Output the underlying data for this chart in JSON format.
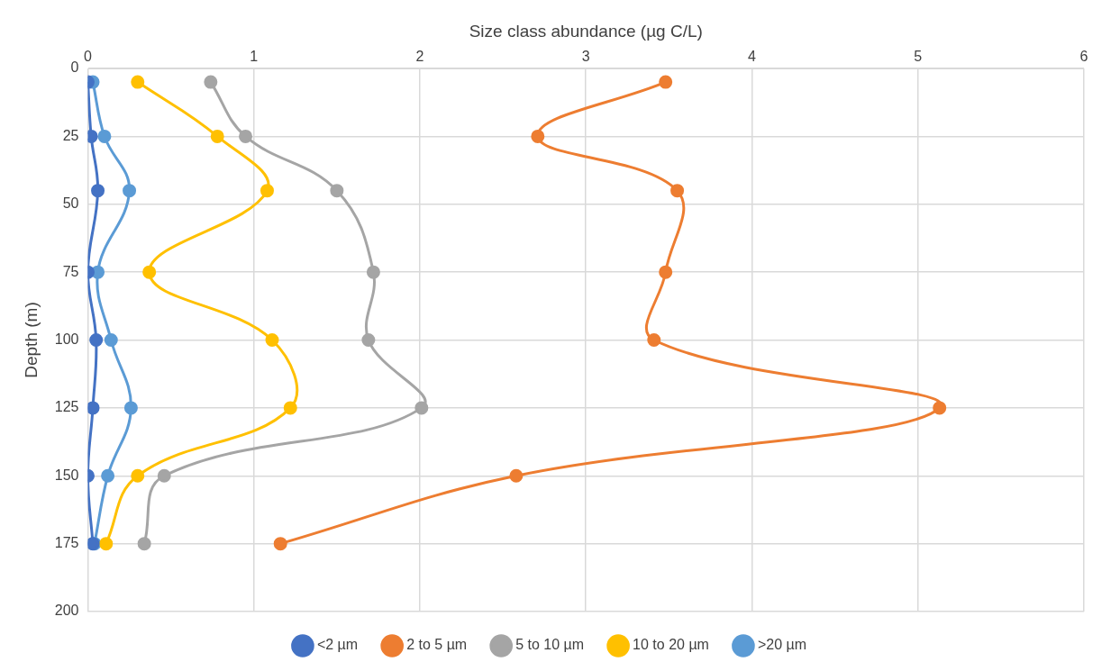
{
  "chart_data": {
    "type": "line",
    "xlabel": "Size class abundance (µg C/L)",
    "ylabel": "Depth (m)",
    "xlim": [
      0,
      6
    ],
    "xticks": [
      0,
      1,
      2,
      3,
      4,
      5,
      6
    ],
    "ylim": [
      200,
      0
    ],
    "yticks": [
      0,
      25,
      50,
      75,
      100,
      125,
      150,
      175,
      200
    ],
    "grid": true,
    "legend": "bottom",
    "marker": "circle",
    "line_style": "solid",
    "series": [
      {
        "name": "<2 µm",
        "color": "#4472c4",
        "x": [
          0,
          0.02,
          0.06,
          0,
          0.05,
          0.03,
          0,
          0.03
        ],
        "values": [
          5,
          25,
          45,
          75,
          100,
          125,
          150,
          175
        ]
      },
      {
        "name": "2 to 5 µm",
        "color": "#ed7d31",
        "x": [
          3.48,
          2.71,
          3.55,
          3.48,
          3.41,
          5.13,
          2.58,
          1.16
        ],
        "values": [
          5,
          25,
          45,
          75,
          100,
          125,
          150,
          175
        ]
      },
      {
        "name": "5 to 10 µm",
        "color": "#a5a5a5",
        "x": [
          0.74,
          0.95,
          1.5,
          1.72,
          1.69,
          2.01,
          0.46,
          0.34
        ],
        "values": [
          5,
          25,
          45,
          75,
          100,
          125,
          150,
          175
        ]
      },
      {
        "name": "10 to 20 µm",
        "color": "#ffc000",
        "x": [
          0.3,
          0.78,
          1.08,
          0.37,
          1.11,
          1.22,
          0.3,
          0.11
        ],
        "values": [
          5,
          25,
          45,
          75,
          100,
          125,
          150,
          175
        ]
      },
      {
        "name": ">20 µm",
        "color": "#5b9bd5",
        "x": [
          0.03,
          0.1,
          0.25,
          0.06,
          0.14,
          0.26,
          0.12,
          0.04
        ],
        "values": [
          5,
          25,
          45,
          75,
          100,
          125,
          150,
          175
        ]
      }
    ]
  }
}
